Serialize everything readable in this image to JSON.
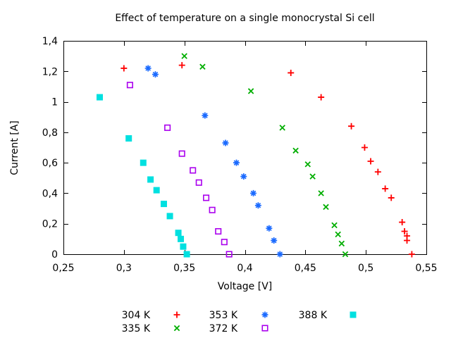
{
  "chart_data": {
    "type": "scatter",
    "title": "Effect of temperature on a single monocrystal Si cell",
    "xlabel": "Voltage [V]",
    "ylabel": "Current [A]",
    "xlim": [
      0.25,
      0.55
    ],
    "ylim": [
      0,
      1.4
    ],
    "grid": false,
    "x_ticks": {
      "values": [
        0.25,
        0.3,
        0.35,
        0.4,
        0.45,
        0.5,
        0.55
      ],
      "labels": [
        "0,25",
        "0,3",
        "0,35",
        "0,4",
        "0,45",
        "0,5",
        "0,55"
      ]
    },
    "y_ticks": {
      "values": [
        0,
        0.2,
        0.4,
        0.6,
        0.8,
        1,
        1.2,
        1.4
      ],
      "labels": [
        "0",
        "0,2",
        "0,4",
        "0,6",
        "0,8",
        "1",
        "1,2",
        "1,4"
      ]
    },
    "legend": {
      "position": "bottom-center",
      "entries": [
        "304 K",
        "335 K",
        "353 K",
        "372 K",
        "388 K"
      ]
    },
    "series": [
      {
        "name": "304 K",
        "marker": "plus",
        "color": "#ff0000",
        "points": [
          [
            0.3,
            1.22
          ],
          [
            0.348,
            1.24
          ],
          [
            0.438,
            1.19
          ],
          [
            0.463,
            1.03
          ],
          [
            0.488,
            0.84
          ],
          [
            0.499,
            0.7
          ],
          [
            0.504,
            0.61
          ],
          [
            0.51,
            0.54
          ],
          [
            0.516,
            0.43
          ],
          [
            0.521,
            0.37
          ],
          [
            0.53,
            0.21
          ],
          [
            0.532,
            0.15
          ],
          [
            0.534,
            0.12
          ],
          [
            0.534,
            0.09
          ],
          [
            0.538,
            0.0
          ]
        ]
      },
      {
        "name": "335 K",
        "marker": "cross",
        "color": "#00ae00",
        "points": [
          [
            0.35,
            1.3
          ],
          [
            0.365,
            1.23
          ],
          [
            0.405,
            1.07
          ],
          [
            0.431,
            0.83
          ],
          [
            0.442,
            0.68
          ],
          [
            0.452,
            0.59
          ],
          [
            0.456,
            0.51
          ],
          [
            0.463,
            0.4
          ],
          [
            0.467,
            0.31
          ],
          [
            0.474,
            0.19
          ],
          [
            0.477,
            0.13
          ],
          [
            0.48,
            0.07
          ],
          [
            0.483,
            0.0
          ]
        ]
      },
      {
        "name": "353 K",
        "marker": "asterisk",
        "color": "#1a6aff",
        "points": [
          [
            0.32,
            1.22
          ],
          [
            0.326,
            1.18
          ],
          [
            0.367,
            0.91
          ],
          [
            0.384,
            0.73
          ],
          [
            0.393,
            0.6
          ],
          [
            0.399,
            0.51
          ],
          [
            0.407,
            0.4
          ],
          [
            0.411,
            0.32
          ],
          [
            0.42,
            0.17
          ],
          [
            0.424,
            0.09
          ],
          [
            0.429,
            0.0
          ]
        ]
      },
      {
        "name": "372 K",
        "marker": "open-square",
        "color": "#aa00ee",
        "points": [
          [
            0.305,
            1.11
          ],
          [
            0.336,
            0.83
          ],
          [
            0.348,
            0.66
          ],
          [
            0.357,
            0.55
          ],
          [
            0.362,
            0.47
          ],
          [
            0.368,
            0.37
          ],
          [
            0.373,
            0.29
          ],
          [
            0.378,
            0.15
          ],
          [
            0.383,
            0.08
          ],
          [
            0.387,
            0.0
          ]
        ]
      },
      {
        "name": "388 K",
        "marker": "filled-square",
        "color": "#00e0e0",
        "points": [
          [
            0.28,
            1.03
          ],
          [
            0.304,
            0.76
          ],
          [
            0.316,
            0.6
          ],
          [
            0.322,
            0.49
          ],
          [
            0.327,
            0.42
          ],
          [
            0.333,
            0.33
          ],
          [
            0.338,
            0.25
          ],
          [
            0.345,
            0.14
          ],
          [
            0.347,
            0.1
          ],
          [
            0.349,
            0.05
          ],
          [
            0.352,
            0.0
          ]
        ]
      }
    ]
  }
}
